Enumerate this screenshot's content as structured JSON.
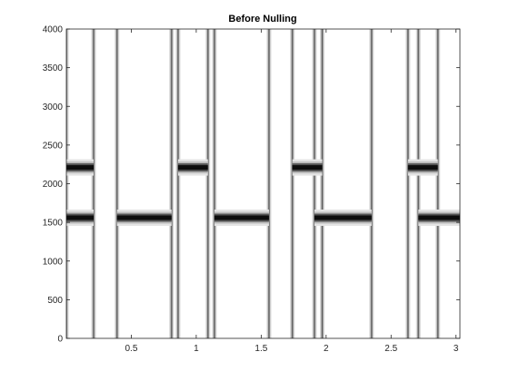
{
  "chart_data": {
    "type": "heatmap",
    "subtype": "spectrogram",
    "title": "Before Nulling",
    "xlabel": "",
    "ylabel": "",
    "xlim": [
      0,
      3.03
    ],
    "ylim": [
      0,
      4000
    ],
    "xticks": [
      0.5,
      1,
      1.5,
      2,
      2.5,
      3
    ],
    "xtick_labels": [
      "0.5",
      "1",
      "1.5",
      "2",
      "2.5",
      "3"
    ],
    "yticks": [
      0,
      500,
      1000,
      1500,
      2000,
      2500,
      3000,
      3500,
      4000
    ],
    "ytick_labels": [
      "0",
      "500",
      "1000",
      "1500",
      "2000",
      "2500",
      "3000",
      "3500",
      "4000"
    ],
    "colormap": "grayscale-inverted",
    "grid": false,
    "segments": [
      {
        "t_start": 0.0,
        "t_end": 0.21,
        "tones_hz": [
          1560,
          2210
        ]
      },
      {
        "t_start": 0.39,
        "t_end": 0.81,
        "tones_hz": [
          1560
        ]
      },
      {
        "t_start": 0.86,
        "t_end": 1.09,
        "tones_hz": [
          2210
        ]
      },
      {
        "t_start": 1.14,
        "t_end": 1.56,
        "tones_hz": [
          1560
        ]
      },
      {
        "t_start": 1.74,
        "t_end": 1.97,
        "tones_hz": [
          2210
        ]
      },
      {
        "t_start": 1.91,
        "t_end": 2.35,
        "tones_hz": [
          1560
        ]
      },
      {
        "t_start": 2.63,
        "t_end": 2.86,
        "tones_hz": [
          2210
        ]
      },
      {
        "t_start": 2.71,
        "t_end": 3.03,
        "tones_hz": [
          1560
        ]
      }
    ],
    "transients_t": [
      0.0,
      0.21,
      0.39,
      0.81,
      0.86,
      1.09,
      1.14,
      1.56,
      1.74,
      1.91,
      1.97,
      2.35,
      2.63,
      2.71,
      2.86
    ]
  }
}
